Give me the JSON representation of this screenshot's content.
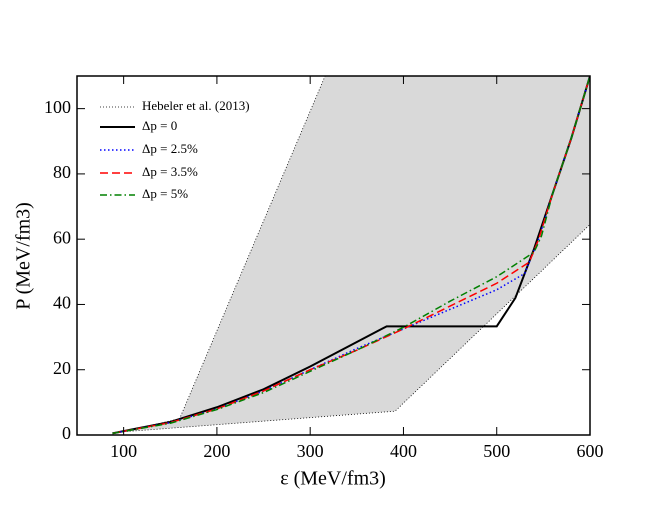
{
  "chart_data": {
    "type": "line",
    "xlabel": "ε (MeV/fm3)",
    "ylabel": "P (MeV/fm3)",
    "xlim": [
      50,
      600
    ],
    "xticks": [
      100,
      200,
      300,
      400,
      500,
      600
    ],
    "ylim": [
      0,
      110
    ],
    "yticks": [
      0,
      20,
      40,
      60,
      80,
      100
    ],
    "legend": "upper left",
    "band": {
      "name": "Hebeler et al. (2013)",
      "color": "#d9d9d9",
      "upper": {
        "x": [
          100,
          160,
          316
        ],
        "y": [
          1,
          5,
          110
        ]
      },
      "lower": {
        "x": [
          100,
          391,
          600
        ],
        "y": [
          1,
          7.3,
          64.5
        ]
      },
      "right": {
        "x": [
          600,
          600
        ],
        "y": [
          64.5,
          110
        ]
      }
    },
    "series": [
      {
        "name": "Δp = 0",
        "color": "#000000",
        "dash": "solid",
        "x": [
          88,
          100,
          150,
          200,
          250,
          300,
          350,
          382,
          500,
          520,
          540,
          560,
          580,
          600
        ],
        "values": [
          0.5,
          1.2,
          4,
          8.5,
          14,
          21,
          28.5,
          33.3,
          33.3,
          42,
          57,
          74,
          91,
          110
        ]
      },
      {
        "name": "Δp = 2.5%",
        "color": "#0000ff",
        "dash": "dotted",
        "x": [
          88,
          150,
          200,
          250,
          300,
          350,
          400,
          450,
          500,
          530,
          545,
          560,
          580,
          600
        ],
        "values": [
          0.5,
          3.8,
          8,
          13.5,
          20,
          26.5,
          32.5,
          38.5,
          44.5,
          49.5,
          60,
          74,
          91,
          110
        ]
      },
      {
        "name": "Δp = 3.5%",
        "color": "#ff0000",
        "dash": "dashed",
        "x": [
          88,
          150,
          200,
          250,
          300,
          350,
          400,
          450,
          500,
          535,
          545,
          560,
          580,
          600
        ],
        "values": [
          0.5,
          3.8,
          8,
          13.5,
          20,
          26,
          32.5,
          39.5,
          46.5,
          53,
          60,
          74,
          91,
          110
        ]
      },
      {
        "name": "Δp = 5%",
        "color": "#008000",
        "dash": "dashdot",
        "x": [
          88,
          150,
          200,
          250,
          300,
          350,
          400,
          450,
          500,
          540,
          548,
          560,
          580,
          600
        ],
        "values": [
          0.5,
          3.6,
          7.8,
          13,
          19.5,
          26,
          33,
          41,
          48.5,
          56,
          61,
          74,
          91,
          110
        ]
      }
    ]
  }
}
